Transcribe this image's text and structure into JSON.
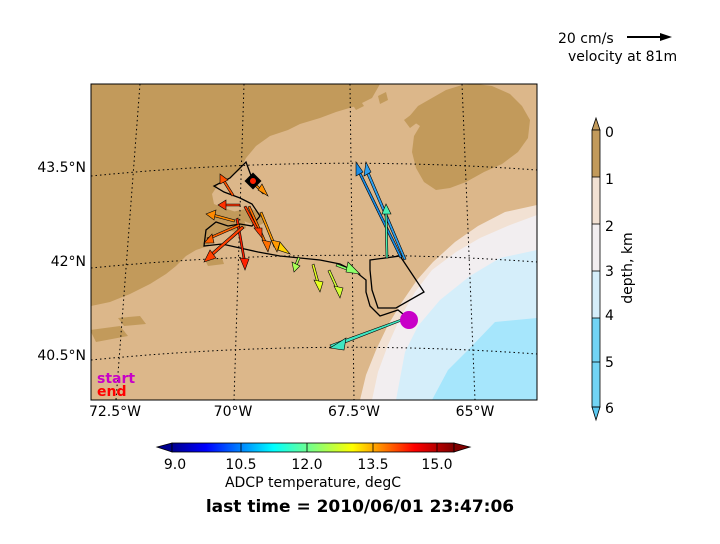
{
  "velocity_legend": {
    "speed_label": "20 cm/s",
    "depth_label": "velocity at 81m"
  },
  "map": {
    "lat_labels": [
      "43.5°N",
      "42°N",
      "40.5°N"
    ],
    "lon_labels": [
      "72.5°W",
      "70°W",
      "67.5°W",
      "65°W"
    ],
    "start_label": "start",
    "end_label": "end",
    "colors": {
      "land": "#c29a5b",
      "shelf": "#dcb78a",
      "slope": "#f2e1d3",
      "upper_deep": "#f2eef0",
      "deep": "#d5eefa",
      "abyss": "#a6e6fc",
      "track": "#000000",
      "start_marker": "#c800c8",
      "end_marker": "#ff0000"
    }
  },
  "depth_colorbar": {
    "label": "depth, km",
    "ticks": [
      "0",
      "1",
      "2",
      "3",
      "4",
      "5",
      "6"
    ]
  },
  "temp_colorbar": {
    "label": "ADCP temperature, degC",
    "ticks": [
      "9.0",
      "10.5",
      "12.0",
      "13.5",
      "15.0"
    ]
  },
  "footer": {
    "last_time": "last time = 2010/06/01 23:47:06"
  }
}
